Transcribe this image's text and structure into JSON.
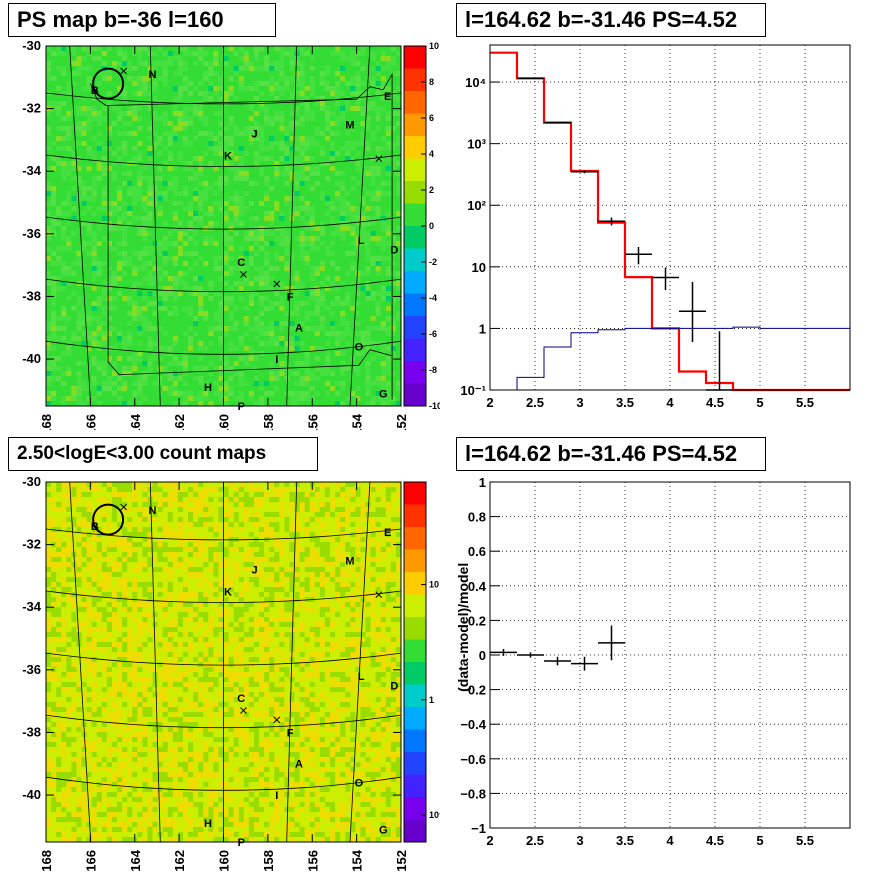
{
  "panels": {
    "tl_title": "PS map b=-36 l=160",
    "tr_title": "l=164.62 b=-31.46 PS=4.52",
    "bl_title": "2.50<logE<3.00 count maps",
    "br_title": "l=164.62 b=-31.46 PS=4.52"
  },
  "maps": {
    "x_ticks": [
      "168",
      "166",
      "164",
      "162",
      "160",
      "158",
      "156",
      "154",
      "152"
    ],
    "y_ticks": [
      "-30",
      "-32",
      "-34",
      "-36",
      "-38",
      "-40"
    ],
    "sources": [
      {
        "label": "N",
        "l": 163.2,
        "b": -30.9
      },
      {
        "label": "B",
        "l": 165.8,
        "b": -31.4
      },
      {
        "label": "E",
        "l": 152.6,
        "b": -31.6
      },
      {
        "label": "M",
        "l": 154.3,
        "b": -32.5
      },
      {
        "label": "J",
        "l": 158.6,
        "b": -32.8
      },
      {
        "label": "K",
        "l": 159.8,
        "b": -33.5
      },
      {
        "label": "L",
        "l": 153.8,
        "b": -36.2
      },
      {
        "label": "D",
        "l": 152.3,
        "b": -36.5
      },
      {
        "label": "C",
        "l": 159.2,
        "b": -36.9
      },
      {
        "label": "F",
        "l": 157.0,
        "b": -38.0
      },
      {
        "label": "A",
        "l": 156.6,
        "b": -39.0
      },
      {
        "label": "O",
        "l": 153.9,
        "b": -39.6
      },
      {
        "label": "I",
        "l": 157.6,
        "b": -40.0
      },
      {
        "label": "H",
        "l": 160.7,
        "b": -40.9
      },
      {
        "label": "G",
        "l": 152.8,
        "b": -41.1
      },
      {
        "label": "P",
        "l": 159.2,
        "b": -41.5
      }
    ],
    "crosses": [
      {
        "l": 164.5,
        "b": -30.8
      },
      {
        "l": 153.0,
        "b": -33.6
      },
      {
        "l": 159.1,
        "b": -37.3
      },
      {
        "l": 157.6,
        "b": -37.6
      }
    ],
    "circle": {
      "l": 165.2,
      "b": -31.2
    },
    "ps_colorbar": {
      "ticks": [
        "10",
        "8",
        "6",
        "4",
        "2",
        "0",
        "-2",
        "-4",
        "-6",
        "-8",
        "-10"
      ],
      "colors": [
        "#ff0000",
        "#ff3300",
        "#ff6600",
        "#ff9900",
        "#ffcc00",
        "#ccee00",
        "#99dd00",
        "#33dd33",
        "#00cc66",
        "#00cccc",
        "#00aaff",
        "#0077ff",
        "#2244ff",
        "#4422ff",
        "#7700ee",
        "#6600cc"
      ]
    },
    "count_colorbar": {
      "ticks": [
        "10",
        "1",
        "10⁻¹"
      ],
      "colors": [
        "#ff0000",
        "#ff3300",
        "#ff6600",
        "#ff9900",
        "#ffcc00",
        "#ccee00",
        "#99dd00",
        "#33dd33",
        "#00cc66",
        "#00cccc",
        "#00aaff",
        "#0077ff",
        "#2244ff",
        "#4422ff",
        "#7700ee",
        "#6600cc"
      ]
    }
  },
  "chart_data": [
    {
      "type": "heatmap",
      "title": "PS map b=-36 l=160",
      "xlim": [
        168,
        152
      ],
      "ylim": [
        -41.5,
        -30
      ],
      "zlim": [
        -10,
        10
      ],
      "x_tick_labels": [
        "168",
        "166",
        "164",
        "162",
        "160",
        "158",
        "156",
        "154",
        "152"
      ],
      "y_tick_labels": [
        "-30",
        "-32",
        "-34",
        "-36",
        "-38",
        "-40"
      ],
      "colorbar_ticks": [
        "10",
        "8",
        "6",
        "4",
        "2",
        "0",
        "-2",
        "-4",
        "-6",
        "-8",
        "-10"
      ]
    },
    {
      "type": "line",
      "title": "l=164.62 b=-31.46 PS=4.52",
      "yscale": "log",
      "xlim": [
        2,
        6
      ],
      "ylim": [
        0.1,
        40000
      ],
      "x_tick_labels": [
        "2",
        "2.5",
        "3",
        "3.5",
        "4",
        "4.5",
        "5",
        "5.5"
      ],
      "y_tick_labels": [
        "10⁻¹",
        "1",
        "10",
        "10²",
        "10³",
        "10⁴"
      ],
      "grid": true,
      "series": [
        {
          "kind": "step",
          "color": "#ff0000",
          "edges": [
            2,
            2.3,
            2.6,
            2.9,
            3.2,
            3.5,
            3.8,
            4.1,
            4.4,
            4.7,
            5.0,
            6.0
          ],
          "values": [
            30000,
            11500,
            2200,
            360,
            52,
            6.8,
            1.0,
            0.2,
            0.13,
            0.1,
            0.1
          ]
        },
        {
          "kind": "step",
          "color": "#00008b",
          "edges": [
            2,
            2.3,
            2.6,
            2.9,
            3.2,
            3.5,
            3.8,
            4.1,
            4.4,
            4.7,
            5.0,
            6.0
          ],
          "values": [
            0.1,
            0.16,
            0.5,
            0.85,
            0.95,
            1.0,
            1.0,
            1.0,
            1.0,
            1.05,
            1.0
          ]
        },
        {
          "kind": "points",
          "color": "#000000",
          "x": [
            2.45,
            2.75,
            3.05,
            3.35,
            3.65,
            3.95,
            4.25,
            4.55
          ],
          "y": [
            11500,
            2200,
            350,
            55,
            16,
            6.7,
            1.9,
            0.1
          ],
          "xerr": [
            0.15,
            0.15,
            0.15,
            0.15,
            0.15,
            0.15,
            0.15,
            0.15
          ],
          "yerr_lo": [
            100,
            50,
            20,
            8,
            5,
            2.5,
            1.3,
            0.1
          ],
          "yerr_hi": [
            100,
            50,
            20,
            8,
            5,
            3,
            3.8,
            0.8
          ]
        }
      ]
    },
    {
      "type": "heatmap",
      "title": "2.50<logE<3.00 count maps",
      "xlim": [
        168,
        152
      ],
      "ylim": [
        -41.5,
        -30
      ],
      "zscale": "log",
      "x_tick_labels": [
        "168",
        "166",
        "164",
        "162",
        "160",
        "158",
        "156",
        "154",
        "152"
      ],
      "y_tick_labels": [
        "-30",
        "-32",
        "-34",
        "-36",
        "-38",
        "-40"
      ],
      "colorbar_ticks": [
        "10",
        "1",
        "10⁻¹"
      ]
    },
    {
      "type": "scatter",
      "title": "l=164.62 b=-31.46 PS=4.52",
      "ylabel": "(data-model)/model",
      "xlim": [
        2,
        6
      ],
      "ylim": [
        -1,
        1
      ],
      "x_tick_labels": [
        "2",
        "2.5",
        "3",
        "3.5",
        "4",
        "4.5",
        "5",
        "5.5"
      ],
      "y_tick_labels": [
        "1",
        "0.8",
        "0.6",
        "0.4",
        "0.2",
        "0",
        "−0.2",
        "−0.4",
        "−0.6",
        "−0.8",
        "−1"
      ],
      "grid": true,
      "x": [
        2.15,
        2.45,
        2.75,
        3.05,
        3.35
      ],
      "y": [
        0.015,
        0.0,
        -0.035,
        -0.05,
        0.07
      ],
      "xerr": [
        0.15,
        0.15,
        0.15,
        0.15,
        0.15
      ],
      "yerr": [
        0.02,
        0.015,
        0.025,
        0.04,
        0.1
      ]
    }
  ]
}
